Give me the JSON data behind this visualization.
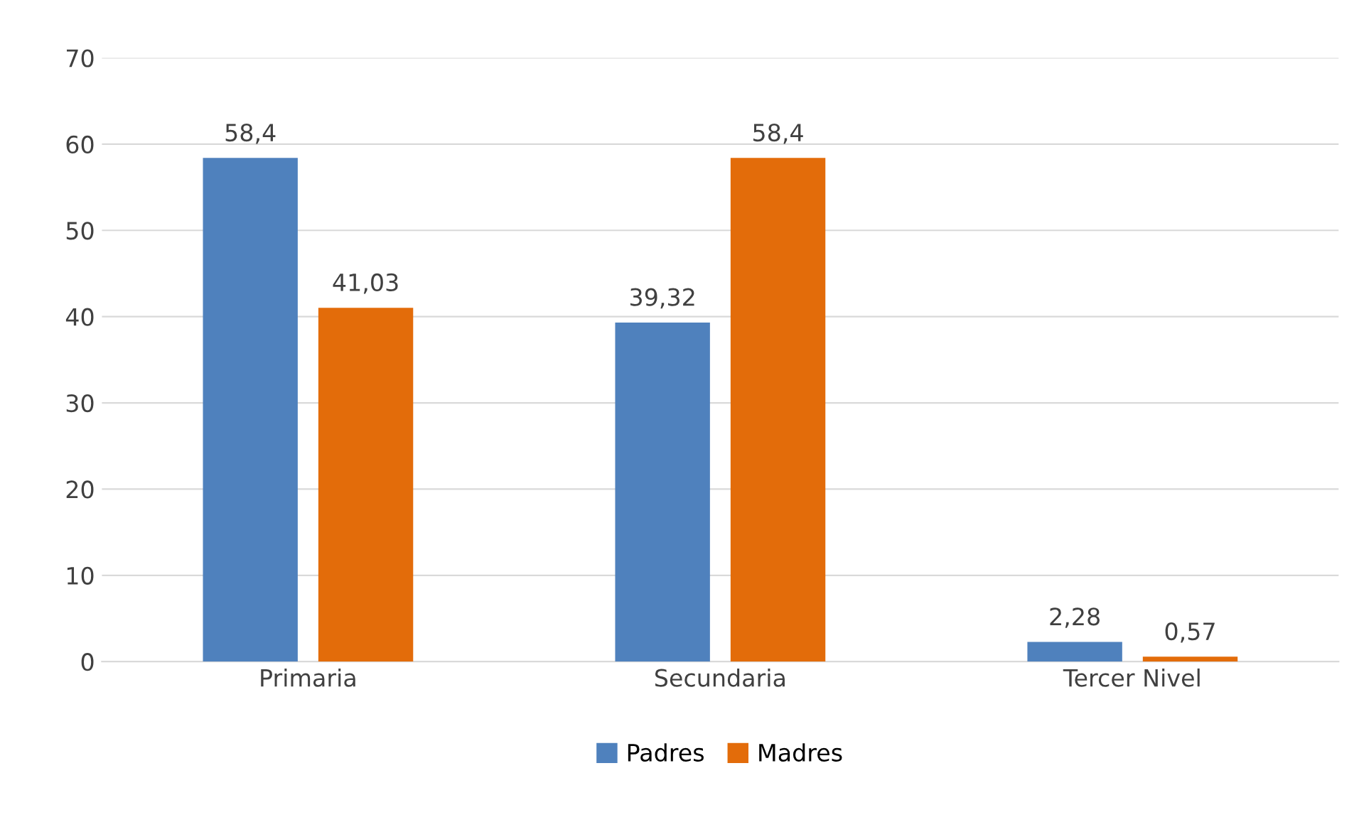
{
  "chart_data": {
    "type": "bar",
    "categories": [
      "Primaria",
      "Secundaria",
      "Tercer Nivel"
    ],
    "series": [
      {
        "name": "Padres",
        "color": "#4f81bd",
        "values": [
          58.4,
          39.32,
          2.28
        ],
        "value_labels": [
          "58,4",
          "39,32",
          "2,28"
        ]
      },
      {
        "name": "Madres",
        "color": "#e36c0a",
        "values": [
          41.03,
          58.4,
          0.57
        ],
        "value_labels": [
          "41,03",
          "58,4",
          "0,57"
        ]
      }
    ],
    "ylim": [
      0,
      70
    ],
    "yticks": [
      0,
      10,
      20,
      30,
      40,
      50,
      60,
      70
    ],
    "grid": "y",
    "legend": "bottom"
  }
}
